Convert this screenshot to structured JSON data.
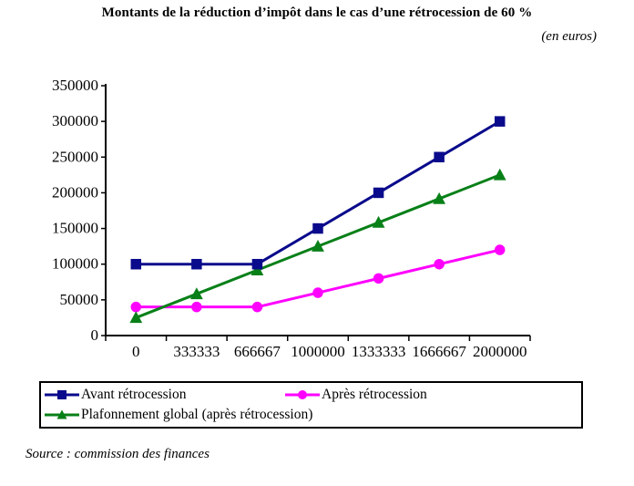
{
  "chart_data": {
    "type": "line",
    "title": "Montants de la réduction d’impôt dans le cas d’une rétrocession de 60 %",
    "unit": "(en euros)",
    "source": "Source : commission des finances",
    "categories": [
      "0",
      "333333",
      "666667",
      "1000000",
      "1333333",
      "1666667",
      "2000000"
    ],
    "x_values": [
      0,
      333333,
      666667,
      1000000,
      1333333,
      1666667,
      2000000
    ],
    "ylim": [
      0,
      350000
    ],
    "yticks": [
      0,
      50000,
      100000,
      150000,
      200000,
      250000,
      300000,
      350000
    ],
    "grid": false,
    "legend_position": "bottom-box",
    "axis_color": "#000000",
    "series": [
      {
        "name": "Avant rétrocession",
        "color": "#0A0A8C",
        "marker": "square",
        "values": [
          100000,
          100000,
          100000,
          150000,
          200000,
          250000,
          300000
        ]
      },
      {
        "name": "Après rétrocession",
        "color": "#FF00FF",
        "marker": "circle",
        "values": [
          40000,
          40000,
          40000,
          60000,
          80000,
          100000,
          120000
        ]
      },
      {
        "name": "Plafonnement global (après rétrocession)",
        "color": "#088018",
        "marker": "triangle",
        "values": [
          25000,
          58333,
          91667,
          125000,
          158333,
          191667,
          225000
        ]
      }
    ]
  }
}
